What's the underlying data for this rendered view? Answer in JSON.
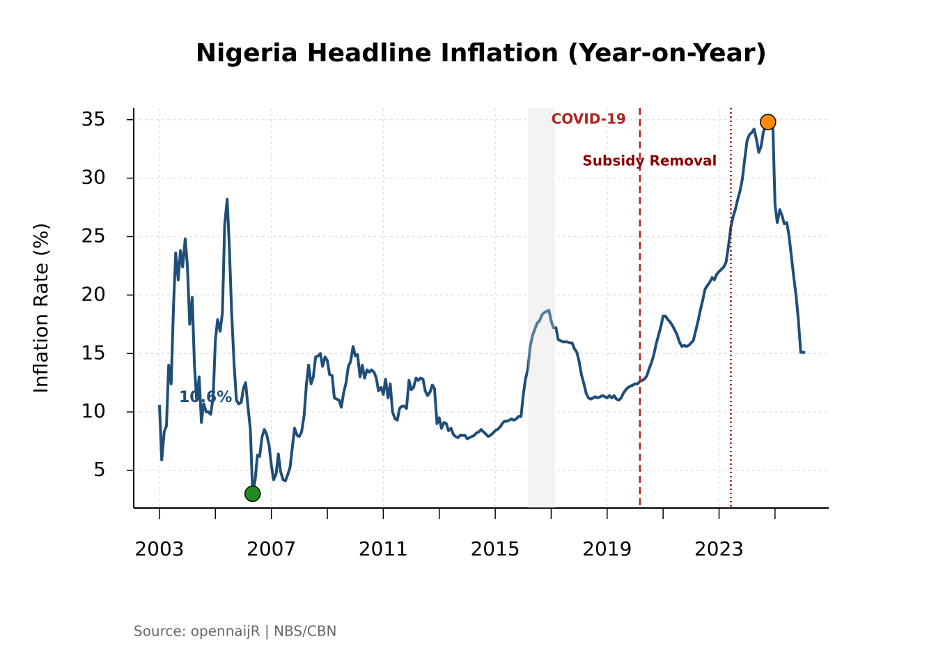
{
  "chart_data": {
    "type": "line",
    "title": "Nigeria Headline Inflation (Year-on-Year)",
    "y_label": "Inflation Rate (%)",
    "source": "Source: opennaijR | NBS/CBN",
    "color": "#1f4e79",
    "x": [
      2003,
      2003.08,
      2003.17,
      2003.25,
      2003.33,
      2003.42,
      2003.5,
      2003.58,
      2003.67,
      2003.75,
      2003.83,
      2003.92,
      2004,
      2004.08,
      2004.17,
      2004.25,
      2004.33,
      2004.42,
      2004.5,
      2004.58,
      2004.67,
      2004.75,
      2004.83,
      2004.92,
      2005,
      2005.08,
      2005.17,
      2005.25,
      2005.33,
      2005.42,
      2005.5,
      2005.58,
      2005.67,
      2005.75,
      2005.83,
      2005.92,
      2006,
      2006.08,
      2006.17,
      2006.25,
      2006.33,
      2006.42,
      2006.5,
      2006.58,
      2006.67,
      2006.75,
      2006.83,
      2006.92,
      2007,
      2007.08,
      2007.17,
      2007.25,
      2007.33,
      2007.42,
      2007.5,
      2007.58,
      2007.67,
      2007.75,
      2007.83,
      2007.92,
      2008,
      2008.08,
      2008.17,
      2008.25,
      2008.33,
      2008.42,
      2008.5,
      2008.58,
      2008.67,
      2008.75,
      2008.83,
      2008.92,
      2009,
      2009.08,
      2009.17,
      2009.25,
      2009.33,
      2009.42,
      2009.5,
      2009.58,
      2009.67,
      2009.75,
      2009.83,
      2009.92,
      2010,
      2010.08,
      2010.17,
      2010.25,
      2010.33,
      2010.42,
      2010.5,
      2010.58,
      2010.67,
      2010.75,
      2010.83,
      2010.92,
      2011,
      2011.08,
      2011.17,
      2011.25,
      2011.33,
      2011.42,
      2011.5,
      2011.58,
      2011.67,
      2011.75,
      2011.83,
      2011.92,
      2012,
      2012.08,
      2012.17,
      2012.25,
      2012.33,
      2012.42,
      2012.5,
      2012.58,
      2012.67,
      2012.75,
      2012.83,
      2012.92,
      2013,
      2013.08,
      2013.17,
      2013.25,
      2013.33,
      2013.42,
      2013.5,
      2013.58,
      2013.67,
      2013.75,
      2013.83,
      2013.92,
      2014,
      2014.08,
      2014.17,
      2014.25,
      2014.33,
      2014.42,
      2014.5,
      2014.58,
      2014.67,
      2014.75,
      2014.83,
      2014.92,
      2015,
      2015.08,
      2015.17,
      2015.25,
      2015.33,
      2015.42,
      2015.5,
      2015.58,
      2015.67,
      2015.75,
      2015.83,
      2015.92,
      2016,
      2016.08,
      2016.17,
      2016.25,
      2016.33,
      2016.42,
      2016.5,
      2016.58,
      2016.67,
      2016.75,
      2016.83,
      2016.92,
      2017,
      2017.08,
      2017.17,
      2017.25,
      2017.33,
      2017.42,
      2017.5,
      2017.58,
      2017.67,
      2017.75,
      2017.83,
      2017.92,
      2018,
      2018.08,
      2018.17,
      2018.25,
      2018.33,
      2018.42,
      2018.5,
      2018.58,
      2018.67,
      2018.75,
      2018.83,
      2018.92,
      2019,
      2019.08,
      2019.17,
      2019.25,
      2019.33,
      2019.42,
      2019.5,
      2019.58,
      2019.67,
      2019.75,
      2019.83,
      2019.92,
      2020,
      2020.08,
      2020.17,
      2020.25,
      2020.33,
      2020.42,
      2020.5,
      2020.58,
      2020.67,
      2020.75,
      2020.83,
      2020.92,
      2021,
      2021.08,
      2021.17,
      2021.25,
      2021.33,
      2021.42,
      2021.5,
      2021.58,
      2021.67,
      2021.75,
      2021.83,
      2021.92,
      2022,
      2022.08,
      2022.17,
      2022.25,
      2022.33,
      2022.42,
      2022.5,
      2022.58,
      2022.67,
      2022.75,
      2022.83,
      2022.92,
      2023,
      2023.08,
      2023.17,
      2023.25,
      2023.33,
      2023.42,
      2023.5,
      2023.58,
      2023.67,
      2023.75,
      2023.83,
      2023.92,
      2024,
      2024.08,
      2024.17,
      2024.25,
      2024.33,
      2024.42,
      2024.5,
      2024.58,
      2024.67,
      2024.75,
      2024.83,
      2024.92,
      2025,
      2025.08,
      2025.17,
      2025.25,
      2025.33,
      2025.42,
      2025.5,
      2025.58,
      2025.67,
      2025.75,
      2025.83,
      2025.92,
      2026,
      2026.08
    ],
    "values": [
      10.6,
      5.9,
      8.3,
      8.8,
      14.0,
      12.4,
      19,
      23.6,
      21.3,
      23.8,
      22.4,
      24.8,
      22.5,
      17.5,
      19.8,
      14,
      11,
      13,
      9.1,
      10.7,
      10,
      10,
      9.8,
      11.3,
      16.2,
      17.9,
      16.9,
      18.5,
      26,
      28.2,
      24,
      18.5,
      14,
      11,
      10.7,
      10.8,
      12,
      12.5,
      10.3,
      8.5,
      3.0,
      4.2,
      6.3,
      6.2,
      7.9,
      8.5,
      8.1,
      7.1,
      5.4,
      4.2,
      4.7,
      6.4,
      4.9,
      4.2,
      4.1,
      4.6,
      5.3,
      7,
      8.6,
      8.0,
      7.9,
      8.3,
      9.7,
      12.3,
      14,
      12.4,
      13,
      14.7,
      14.8,
      15,
      13.9,
      14.7,
      14.4,
      13.2,
      13.1,
      11.2,
      11.1,
      11.0,
      10.4,
      11.6,
      12.5,
      13.9,
      14.3,
      15.6,
      14.8,
      14.9,
      13.0,
      14,
      12.9,
      13.6,
      13.4,
      13.6,
      13.4,
      12.9,
      11.8,
      12.1,
      11.5,
      12.8,
      11.2,
      12.4,
      10.0,
      9.4,
      9.3,
      10.3,
      10.5,
      10.5,
      10.3,
      12.7,
      11.9,
      12.1,
      12.9,
      12.7,
      12.9,
      12.8,
      11.8,
      11.4,
      11.7,
      12.3,
      12.0,
      9,
      9.5,
      8.6,
      9.1,
      9.0,
      8.4,
      8.6,
      8.1,
      7.9,
      7.8,
      8.0,
      8.0,
      8.0,
      7.7,
      7.8,
      7.9,
      8.0,
      8.2,
      8.3,
      8.5,
      8.3,
      8.1,
      7.9,
      8.0,
      8.2,
      8.4,
      8.5,
      8.7,
      9.0,
      9.2,
      9.2,
      9.3,
      9.4,
      9.3,
      9.4,
      9.6,
      9.6,
      11.4,
      12.8,
      13.7,
      15.6,
      16.5,
      17.1,
      17.6,
      17.8,
      18.3,
      18.5,
      18.6,
      18.7,
      17.8,
      17.2,
      17.2,
      16.2,
      16.1,
      16.0,
      16.0,
      16.0,
      15.9,
      15.9,
      15.4,
      15.1,
      14.3,
      13.2,
      12.4,
      11.6,
      11.2,
      11.1,
      11.2,
      11.3,
      11.2,
      11.3,
      11.4,
      11.3,
      11.2,
      11.4,
      11.2,
      11.4,
      11.1,
      11.0,
      11.2,
      11.6,
      11.9,
      12.1,
      12.2,
      12.3,
      12.4,
      12.4,
      12.6,
      12.7,
      12.8,
      13.1,
      13.7,
      14.2,
      14.9,
      15.8,
      16.5,
      17.3,
      18.2,
      18.2,
      17.9,
      17.7,
      17.4,
      17.0,
      16.6,
      16.0,
      15.6,
      15.7,
      15.6,
      15.7,
      15.9,
      16.1,
      17.0,
      17.8,
      18.7,
      19.6,
      20.5,
      20.8,
      21.1,
      21.5,
      21.3,
      21.8,
      22.0,
      22.2,
      22.4,
      22.8,
      24.1,
      25.8,
      26.7,
      27.3,
      28.2,
      28.9,
      29.9,
      31.7,
      33.2,
      33.7,
      33.9,
      34.2,
      33.4,
      32.2,
      32.7,
      33.9,
      34.6,
      34.8,
      34.8,
      34.8,
      27.7,
      26.2,
      27.3,
      26.8,
      26.1,
      26.2,
      25.1,
      23.4,
      21.5,
      20.0,
      18.0,
      15.1,
      15.1,
      15.1
    ],
    "start_label": "10.6%",
    "min_color": "#228b22",
    "max_color": "#ff8c00",
    "shaded_range": [
      2016.17,
      2017.14
    ],
    "events": [
      {
        "label": "COVID-19",
        "x": 2020.17,
        "style": "dashed",
        "color": "#b22222"
      },
      {
        "label": "Subsidy Removal",
        "x": 2023.42,
        "style": "dotted",
        "color": "#8b0000"
      }
    ],
    "xlim": [
      2002.08,
      2026.92
    ],
    "xticks": [
      2003,
      2007,
      2011,
      2015,
      2019,
      2023
    ],
    "xticks_minor": [
      2005,
      2009,
      2013,
      2017,
      2021,
      2025
    ],
    "ylim": [
      1.78,
      36.0
    ],
    "yticks": [
      5,
      10,
      15,
      20,
      25,
      30,
      35
    ],
    "grid": true
  }
}
